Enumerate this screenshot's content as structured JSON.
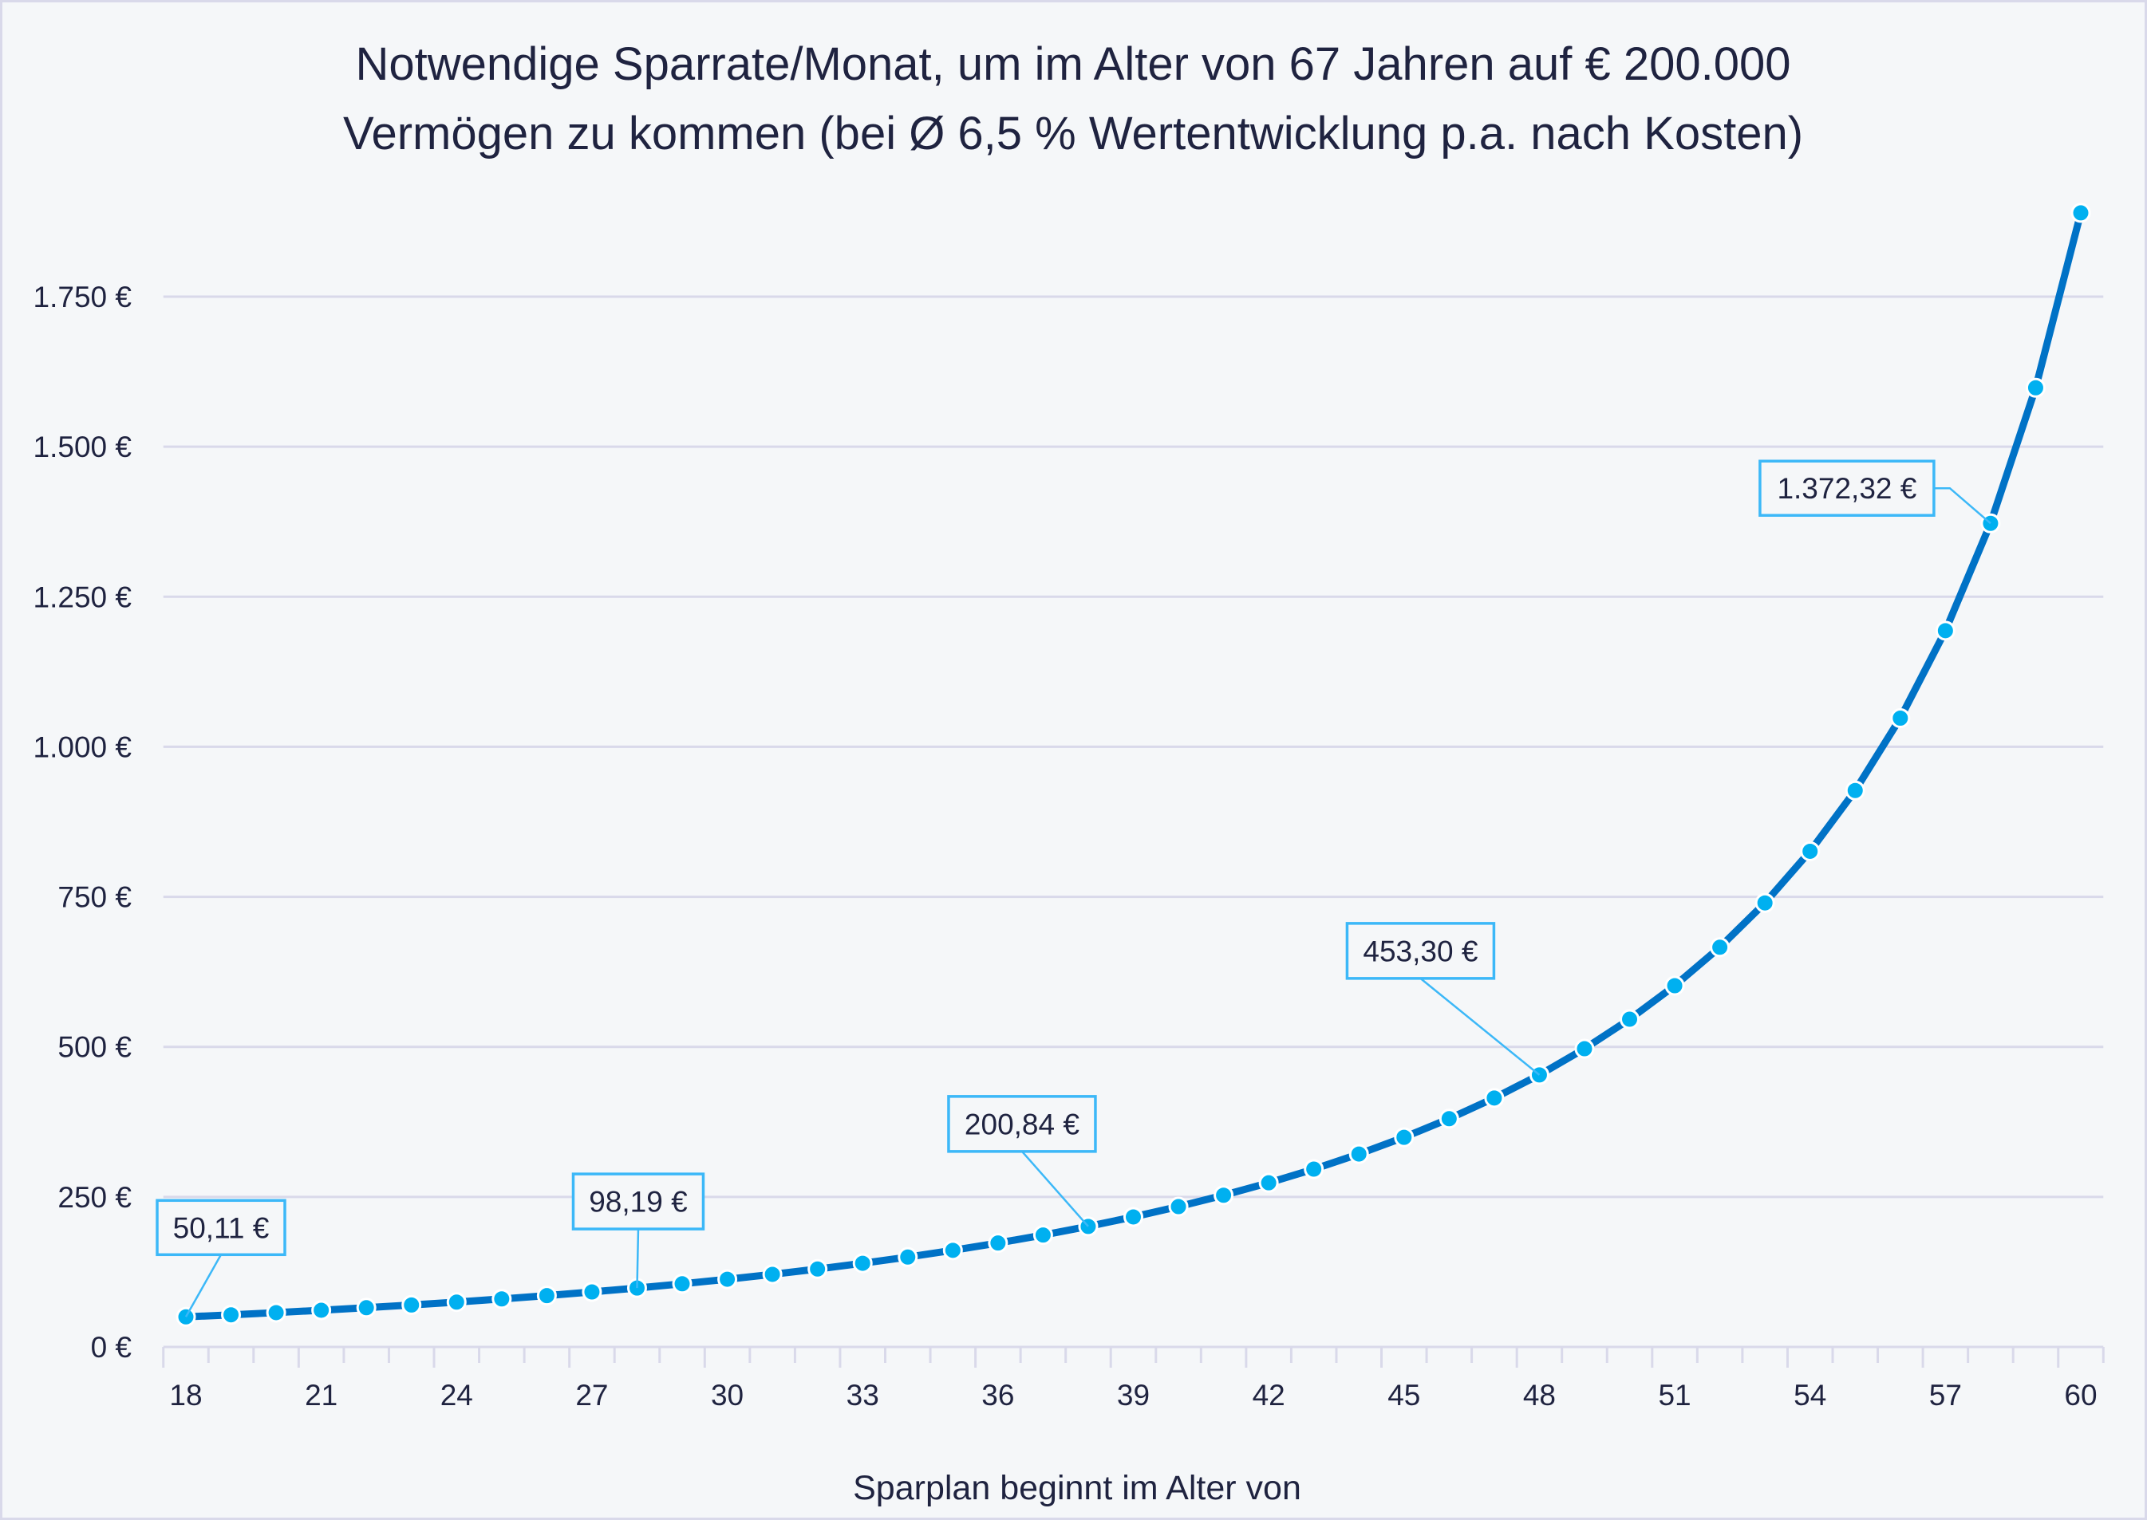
{
  "chart_data": {
    "type": "line",
    "title_lines": [
      "Notwendige Sparrate/Monat, um im Alter von 67 Jahren auf € 200.000",
      "Vermögen zu kommen (bei  Ø 6,5 % Wertentwicklung p.a. nach Kosten)"
    ],
    "xlabel": "Sparplan beginnt im Alter von",
    "ylabel": "",
    "x": [
      18,
      19,
      20,
      21,
      22,
      23,
      24,
      25,
      26,
      27,
      28,
      29,
      30,
      31,
      32,
      33,
      34,
      35,
      36,
      37,
      38,
      39,
      40,
      41,
      42,
      43,
      44,
      45,
      46,
      47,
      48,
      49,
      50,
      51,
      52,
      53,
      54,
      55,
      56,
      57,
      58,
      59,
      60
    ],
    "values": [
      50.11,
      53.55,
      57.22,
      61.16,
      65.38,
      69.92,
      74.78,
      80.02,
      85.55,
      91.7,
      98.19,
      105.24,
      112.82,
      121.0,
      129.84,
      139.41,
      149.76,
      161.0,
      173.19,
      186.46,
      200.84,
      216.66,
      233.89,
      252.77,
      273.49,
      296.3,
      321.47,
      349.34,
      380.3,
      414.81,
      453.3,
      496.92,
      546.07,
      601.97,
      665.98,
      739.87,
      825.91,
      927.14,
      1047.72,
      1193.46,
      1372.32,
      1598.22,
      1889.63
    ],
    "xticks": [
      "18",
      "21",
      "24",
      "27",
      "30",
      "33",
      "36",
      "39",
      "42",
      "45",
      "48",
      "51",
      "54",
      "57",
      "60"
    ],
    "yticks": [
      {
        "value": 0,
        "label": "0 €"
      },
      {
        "value": 250,
        "label": "250 €"
      },
      {
        "value": 500,
        "label": "500 €"
      },
      {
        "value": 750,
        "label": "750 €"
      },
      {
        "value": 1000,
        "label": "1.000 €"
      },
      {
        "value": 1250,
        "label": "1.250 €"
      },
      {
        "value": 1500,
        "label": "1.500 €"
      },
      {
        "value": 1750,
        "label": "1.750 €"
      }
    ],
    "ylim": [
      0,
      1750
    ],
    "grid": true,
    "legend": "none",
    "annotations": [
      {
        "x": 18,
        "label": "50,11 €"
      },
      {
        "x": 28,
        "label": "98,19 €"
      },
      {
        "x": 38,
        "label": "200,84 €"
      },
      {
        "x": 48,
        "label": "453,30 €"
      },
      {
        "x": 58,
        "label": "1.372,32 €"
      }
    ],
    "colors": {
      "line": "#0072c6",
      "marker": "#00b0f0",
      "annotation_border": "#3cb8f8",
      "grid": "#d9d9ea",
      "text": "#1f2340"
    }
  }
}
